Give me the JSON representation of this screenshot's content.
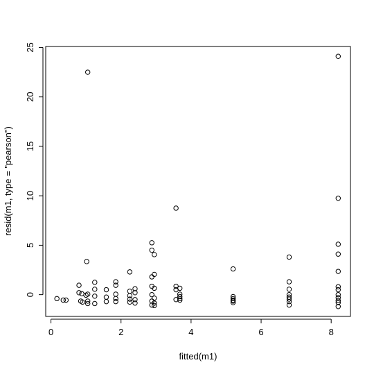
{
  "chart_data": {
    "type": "scatter",
    "title": "",
    "xlabel": "fitted(m1)",
    "ylabel": "resid(m1, type = \"pearson\")",
    "xlim": [
      -0.15,
      8.55
    ],
    "ylim": [
      -2.2,
      25.1
    ],
    "xticks": [
      0,
      2,
      4,
      6,
      8
    ],
    "yticks": [
      0,
      5,
      10,
      15,
      20,
      25
    ],
    "grid": false,
    "legend": "none",
    "points": [
      {
        "x": 0.17,
        "y": -0.4
      },
      {
        "x": 0.35,
        "y": -0.55
      },
      {
        "x": 0.43,
        "y": -0.55
      },
      {
        "x": 0.8,
        "y": 0.95
      },
      {
        "x": 0.8,
        "y": 0.2
      },
      {
        "x": 0.85,
        "y": -0.65
      },
      {
        "x": 0.88,
        "y": 0.1
      },
      {
        "x": 0.9,
        "y": -0.75
      },
      {
        "x": 1.0,
        "y": -0.05
      },
      {
        "x": 1.02,
        "y": 3.35
      },
      {
        "x": 1.05,
        "y": 22.5
      },
      {
        "x": 1.05,
        "y": -0.65
      },
      {
        "x": 1.05,
        "y": 0.05
      },
      {
        "x": 1.05,
        "y": -0.9
      },
      {
        "x": 1.25,
        "y": 1.25
      },
      {
        "x": 1.25,
        "y": 0.55
      },
      {
        "x": 1.25,
        "y": -0.15
      },
      {
        "x": 1.25,
        "y": -0.9
      },
      {
        "x": 1.58,
        "y": 0.5
      },
      {
        "x": 1.58,
        "y": -0.25
      },
      {
        "x": 1.58,
        "y": -0.7
      },
      {
        "x": 1.85,
        "y": 1.3
      },
      {
        "x": 1.85,
        "y": 0.95
      },
      {
        "x": 1.85,
        "y": 0.05
      },
      {
        "x": 1.85,
        "y": -0.4
      },
      {
        "x": 1.85,
        "y": -0.7
      },
      {
        "x": 2.25,
        "y": 2.3
      },
      {
        "x": 2.25,
        "y": 0.35
      },
      {
        "x": 2.25,
        "y": -0.1
      },
      {
        "x": 2.25,
        "y": -0.45
      },
      {
        "x": 2.25,
        "y": -0.75
      },
      {
        "x": 2.4,
        "y": 0.6
      },
      {
        "x": 2.4,
        "y": 0.2
      },
      {
        "x": 2.4,
        "y": -0.5
      },
      {
        "x": 2.4,
        "y": -0.85
      },
      {
        "x": 2.88,
        "y": 5.25
      },
      {
        "x": 2.88,
        "y": 4.5
      },
      {
        "x": 2.95,
        "y": 4.05
      },
      {
        "x": 2.88,
        "y": 1.8
      },
      {
        "x": 2.95,
        "y": 2.05
      },
      {
        "x": 2.88,
        "y": 0.85
      },
      {
        "x": 2.95,
        "y": 0.65
      },
      {
        "x": 2.88,
        "y": 0.0
      },
      {
        "x": 2.95,
        "y": -0.35
      },
      {
        "x": 2.88,
        "y": -0.65
      },
      {
        "x": 2.95,
        "y": -0.85
      },
      {
        "x": 2.88,
        "y": -1.05
      },
      {
        "x": 2.95,
        "y": -1.1
      },
      {
        "x": 3.57,
        "y": 8.75
      },
      {
        "x": 3.57,
        "y": 0.85
      },
      {
        "x": 3.57,
        "y": 0.5
      },
      {
        "x": 3.57,
        "y": -0.5
      },
      {
        "x": 3.68,
        "y": 0.65
      },
      {
        "x": 3.68,
        "y": 0.05
      },
      {
        "x": 3.68,
        "y": -0.2
      },
      {
        "x": 3.68,
        "y": -0.4
      },
      {
        "x": 3.68,
        "y": -0.55
      },
      {
        "x": 5.2,
        "y": 2.6
      },
      {
        "x": 5.2,
        "y": -0.2
      },
      {
        "x": 5.2,
        "y": -0.4
      },
      {
        "x": 5.2,
        "y": -0.55
      },
      {
        "x": 5.2,
        "y": -0.65
      },
      {
        "x": 5.2,
        "y": -0.8
      },
      {
        "x": 6.8,
        "y": 3.8
      },
      {
        "x": 6.8,
        "y": 1.3
      },
      {
        "x": 6.8,
        "y": 0.55
      },
      {
        "x": 6.8,
        "y": 0.0
      },
      {
        "x": 6.8,
        "y": -0.25
      },
      {
        "x": 6.8,
        "y": -0.45
      },
      {
        "x": 6.8,
        "y": -0.7
      },
      {
        "x": 6.8,
        "y": -1.05
      },
      {
        "x": 8.2,
        "y": 24.1
      },
      {
        "x": 8.2,
        "y": 9.75
      },
      {
        "x": 8.2,
        "y": 5.1
      },
      {
        "x": 8.2,
        "y": 4.1
      },
      {
        "x": 8.2,
        "y": 2.35
      },
      {
        "x": 8.2,
        "y": 0.8
      },
      {
        "x": 8.2,
        "y": 0.5
      },
      {
        "x": 8.2,
        "y": 0.0
      },
      {
        "x": 8.2,
        "y": -0.3
      },
      {
        "x": 8.2,
        "y": -0.6
      },
      {
        "x": 8.2,
        "y": -0.8
      },
      {
        "x": 8.2,
        "y": -1.2
      }
    ]
  }
}
